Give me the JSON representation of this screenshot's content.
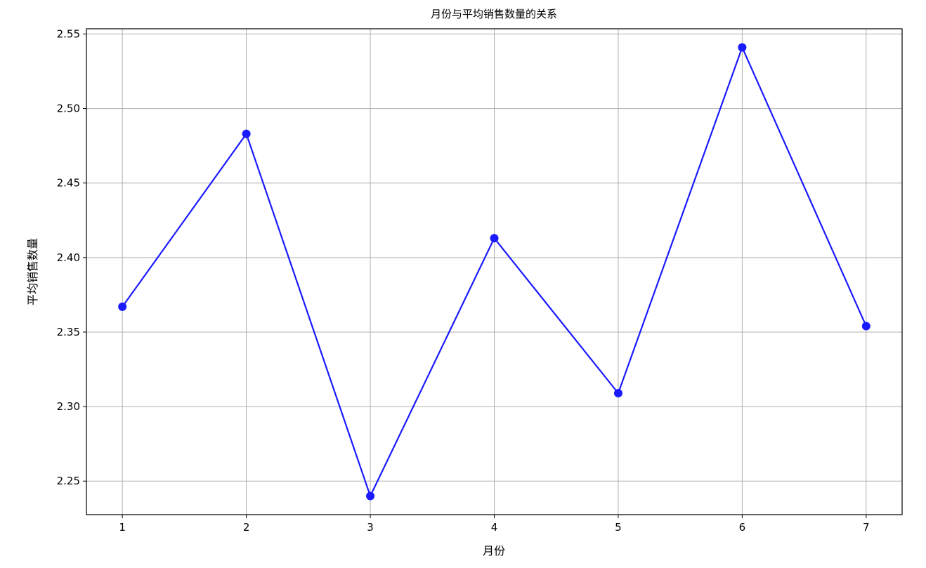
{
  "chart_data": {
    "type": "line",
    "title": "月份与平均销售数量的关系",
    "xlabel": "月份",
    "ylabel": "平均销售数量",
    "x": [
      1,
      2,
      3,
      4,
      5,
      6,
      7
    ],
    "y": [
      2.367,
      2.483,
      2.24,
      2.413,
      2.309,
      2.541,
      2.354
    ],
    "x_ticks": [
      "1",
      "2",
      "3",
      "4",
      "5",
      "6",
      "7"
    ],
    "y_ticks": [
      "2.25",
      "2.30",
      "2.35",
      "2.40",
      "2.45",
      "2.50",
      "2.55"
    ],
    "xlim": [
      0.71,
      7.29
    ],
    "ylim": [
      2.2275,
      2.5535
    ],
    "grid": true,
    "line_color": "#1a1aff",
    "marker": "circle"
  }
}
